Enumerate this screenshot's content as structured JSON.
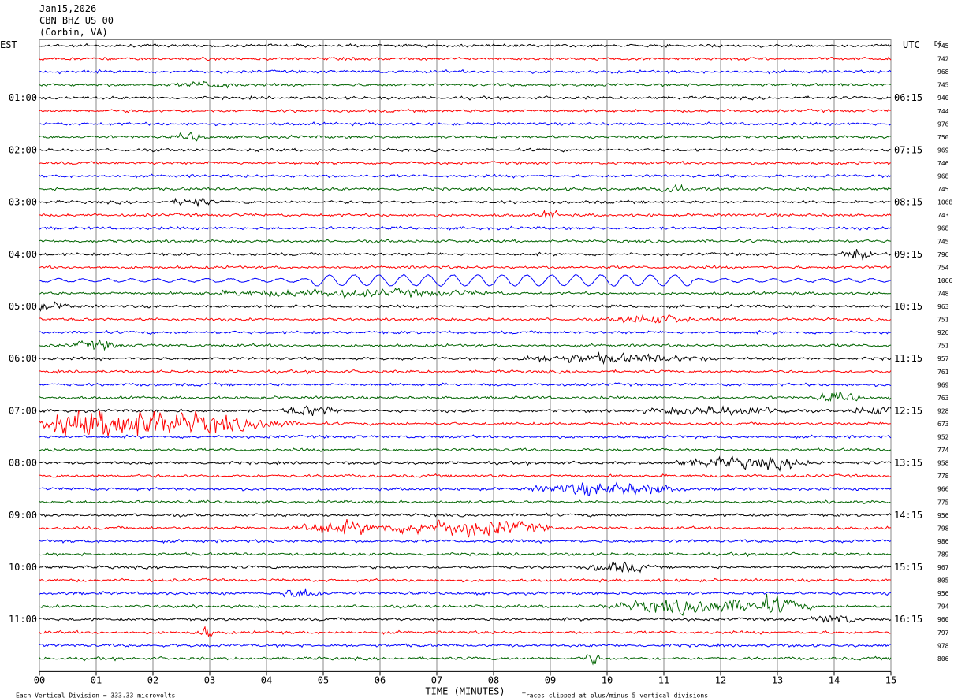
{
  "header": {
    "date": "Jan15,2026",
    "station": "CBN BHZ US 00",
    "location": "(Corbin, VA)"
  },
  "chart_data": {
    "type": "line",
    "left_zone": "EST",
    "right_zone": "UTC",
    "right_top_label": "DC",
    "x_ticks": [
      "00",
      "01",
      "02",
      "03",
      "04",
      "05",
      "06",
      "07",
      "08",
      "09",
      "10",
      "11",
      "12",
      "13",
      "14",
      "15"
    ],
    "xlabel": "TIME (MINUTES)",
    "xlim": [
      0,
      15
    ],
    "left_hour_labels": [
      "01:00",
      "02:00",
      "03:00",
      "04:00",
      "05:00",
      "06:00",
      "07:00",
      "08:00",
      "09:00",
      "10:00",
      "11:00"
    ],
    "right_hour_labels": [
      "06:15",
      "07:15",
      "08:15",
      "09:15",
      "10:15",
      "11:15",
      "12:15",
      "13:15",
      "14:15",
      "15:15",
      "16:15"
    ],
    "trace_colors": [
      "#000000",
      "#ff0000",
      "#0000ff",
      "#006400"
    ],
    "dc_offsets": [
      "745",
      "742",
      "968",
      "745",
      "940",
      "744",
      "976",
      "750",
      "969",
      "746",
      "968",
      "745",
      "1068",
      "743",
      "968",
      "745",
      "796",
      "754",
      "1066",
      "748",
      "963",
      "751",
      "926",
      "751",
      "957",
      "761",
      "969",
      "763",
      "928",
      "673",
      "952",
      "774",
      "958",
      "778",
      "966",
      "775",
      "956",
      "798",
      "986",
      "789",
      "967",
      "805",
      "956",
      "794",
      "960",
      "797",
      "978",
      "806"
    ],
    "footer_scale": "Each Vertical Division =  333.33 microvolts",
    "footer_clip": "Traces clipped at plus/minus 5 vertical divisions"
  }
}
